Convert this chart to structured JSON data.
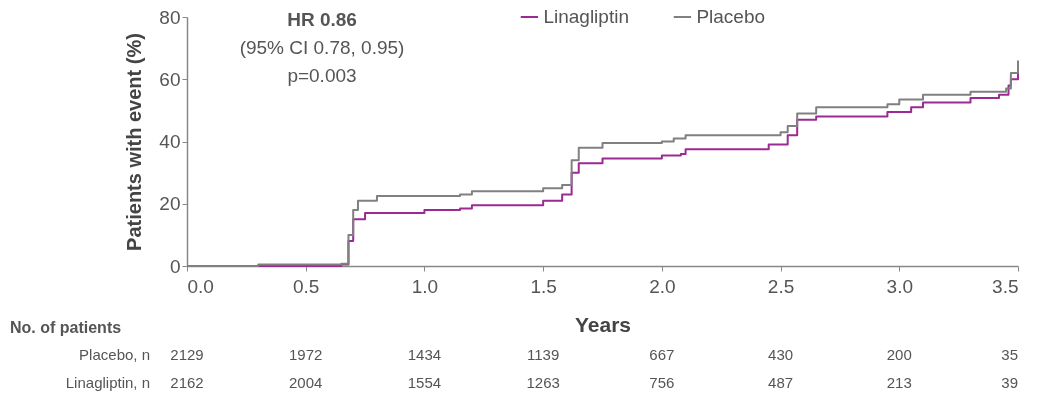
{
  "chart_data": {
    "type": "step",
    "xlabel": "Years",
    "ylabel": "Patients with event (%)",
    "xlim": [
      0,
      3.5
    ],
    "xticks": [
      {
        "value": 0,
        "label": "0.0"
      },
      0.5,
      {
        "value": 1,
        "label": "1.0"
      },
      1.5,
      {
        "value": 2,
        "label": "2.0"
      },
      2.5,
      {
        "value": 3,
        "label": "3.0"
      },
      3.5
    ],
    "ylim": [
      0,
      80
    ],
    "yticks": [
      0,
      20,
      40,
      60,
      80
    ],
    "grid": false,
    "legend": "top",
    "marker": "none",
    "line_style": "solid",
    "series": [
      {
        "name": "Linagliptin",
        "color": "#9b2a92",
        "x": [
          0,
          0.65,
          0.68,
          0.7,
          0.75,
          1.0,
          1.15,
          1.2,
          1.5,
          1.58,
          1.62,
          1.65,
          1.75,
          2.0,
          2.08,
          2.1,
          2.45,
          2.53,
          2.57,
          2.65,
          2.95,
          3.05,
          3.1,
          3.3,
          3.42,
          3.46,
          3.47,
          3.5
        ],
        "values": [
          0,
          0.5,
          8,
          15,
          17,
          18,
          18.5,
          19.5,
          21,
          23,
          30,
          33,
          34.5,
          35.5,
          36,
          37.5,
          39,
          42,
          47,
          48,
          49.5,
          51,
          52.5,
          54,
          55,
          58,
          60,
          62
        ]
      },
      {
        "name": "Placebo",
        "color": "#808080",
        "x": [
          0,
          0.3,
          0.65,
          0.68,
          0.7,
          0.72,
          0.8,
          1.15,
          1.2,
          1.5,
          1.58,
          1.62,
          1.65,
          1.75,
          2.0,
          2.05,
          2.1,
          2.5,
          2.53,
          2.57,
          2.65,
          2.95,
          3.0,
          3.1,
          3.3,
          3.45,
          3.47,
          3.5
        ],
        "values": [
          0,
          0.5,
          0.7,
          10,
          18,
          21,
          22.5,
          23,
          24,
          25,
          26,
          34,
          38,
          39.5,
          40,
          41,
          42,
          43,
          45,
          49,
          51,
          52,
          53.5,
          55,
          56,
          57,
          62,
          66
        ]
      }
    ],
    "annotations": [
      "HR 0.86",
      "(95% CI 0.78, 0.95)",
      "p=0.003",
      "No. of patients",
      "Placebo, n",
      "2129",
      "1972",
      "1434",
      "1139",
      "667",
      "430",
      "200",
      "35",
      "Linagliptin, n",
      "2162",
      "2004",
      "1554",
      "1263",
      "756",
      "487",
      "213",
      "39"
    ]
  }
}
